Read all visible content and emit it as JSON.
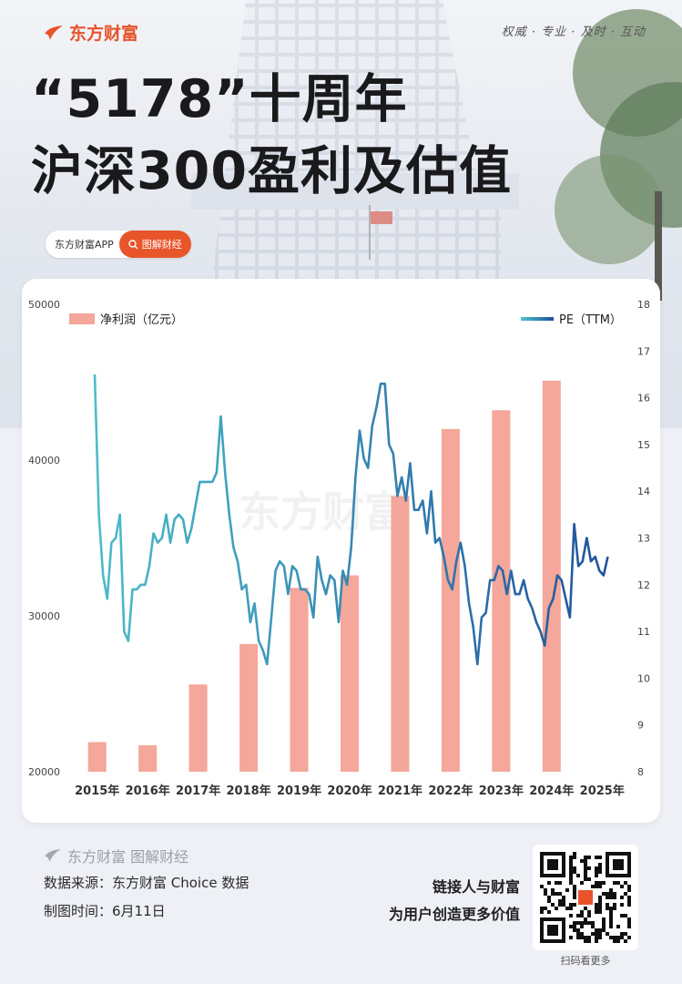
{
  "header": {
    "brand": "东方财富",
    "slogan": "权威 · 专业 · 及时 · 互动",
    "title_line1": "“5178”十周年",
    "title_line2": "沪深300盈利及估值",
    "tag_app": "东方财富APP",
    "tag_button": "图解财经"
  },
  "chart_data": {
    "type": "bar+line",
    "watermark": "东方财富",
    "categories": [
      "2015年",
      "2016年",
      "2017年",
      "2018年",
      "2019年",
      "2020年",
      "2021年",
      "2022年",
      "2023年",
      "2024年",
      "2025年"
    ],
    "bar_series": {
      "name": "净利润（亿元）",
      "axis": "left",
      "values": [
        21900,
        21700,
        25600,
        28200,
        31800,
        32600,
        37700,
        42000,
        43200,
        45100,
        null
      ]
    },
    "line_series": {
      "name": "PE（TTM）",
      "axis": "right",
      "x_start": 2015.45,
      "x_step": 0.0833,
      "values": [
        16.5,
        13.5,
        12.2,
        11.7,
        12.9,
        13.0,
        13.5,
        11.0,
        10.8,
        11.9,
        11.9,
        12.0,
        12.0,
        12.4,
        13.1,
        12.9,
        13.0,
        13.5,
        12.9,
        13.4,
        13.5,
        13.4,
        12.9,
        13.2,
        13.7,
        14.2,
        14.2,
        14.2,
        14.2,
        14.4,
        15.6,
        14.4,
        13.5,
        12.8,
        12.5,
        11.9,
        12.0,
        11.2,
        11.6,
        10.8,
        10.6,
        10.3,
        11.3,
        12.3,
        12.5,
        12.4,
        11.8,
        12.4,
        12.3,
        11.9,
        11.9,
        11.8,
        11.3,
        12.6,
        12.1,
        11.8,
        12.2,
        12.1,
        11.2,
        12.3,
        12.0,
        12.8,
        14.3,
        15.3,
        14.7,
        14.5,
        15.4,
        15.8,
        16.3,
        16.3,
        15.0,
        14.8,
        13.9,
        14.3,
        13.8,
        14.6,
        13.6,
        13.6,
        13.8,
        13.1,
        14.0,
        12.9,
        13.0,
        12.6,
        12.1,
        11.9,
        12.5,
        12.9,
        12.4,
        11.6,
        11.1,
        10.3,
        11.3,
        11.4,
        12.1,
        12.1,
        12.4,
        12.3,
        11.8,
        12.3,
        11.8,
        11.8,
        12.1,
        11.7,
        11.5,
        11.2,
        11.0,
        10.7,
        11.5,
        11.7,
        12.2,
        12.1,
        11.7,
        11.3,
        13.3,
        12.4,
        12.5,
        13.0,
        12.5,
        12.6,
        12.3,
        12.2,
        12.6
      ]
    },
    "left_axis": {
      "ticks": [
        20000,
        30000,
        40000,
        50000
      ],
      "range": [
        20000,
        50000
      ]
    },
    "right_axis": {
      "ticks": [
        8,
        9,
        10,
        11,
        12,
        13,
        14,
        15,
        16,
        17,
        18
      ],
      "range": [
        8,
        18
      ]
    },
    "colors": {
      "bar": "#f4a79a",
      "line_start": "#4fc1cc",
      "line_end": "#1f4f9c"
    },
    "legend_placement": "top"
  },
  "footer": {
    "brand": "东方财富 图解财经",
    "source": "数据来源：东方财富 Choice 数据",
    "draw_time": "制图时间：6月11日",
    "motto1": "链接人与财富",
    "motto2": "为用户创造更多价值",
    "qr_caption": "扫码看更多"
  }
}
